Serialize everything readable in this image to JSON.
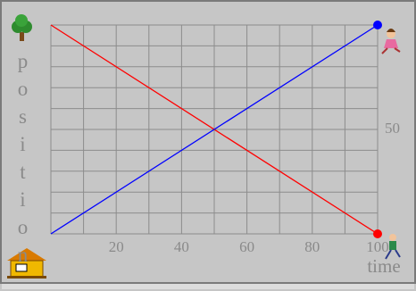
{
  "chart_data": {
    "type": "line",
    "x_label": "time",
    "y_label": "position",
    "x": [
      0,
      100
    ],
    "series": [
      {
        "color": "#ff0000",
        "values": [
          100,
          0
        ]
      },
      {
        "color": "#0000ff",
        "values": [
          0,
          100
        ]
      }
    ],
    "xlim": [
      0,
      100
    ],
    "ylim": [
      0,
      100
    ],
    "xticks": [
      20,
      40,
      60,
      80,
      100
    ],
    "yticks": [
      50
    ],
    "xgrid": [
      0,
      10,
      20,
      30,
      40,
      50,
      60,
      70,
      80,
      90,
      100
    ],
    "ygrid": [
      0,
      10,
      20,
      30,
      40,
      50,
      60,
      70,
      80,
      90,
      100
    ],
    "grid": true
  }
}
